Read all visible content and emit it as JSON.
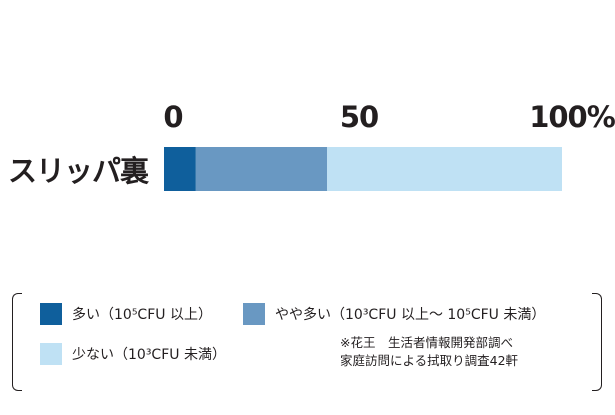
{
  "chart_data": {
    "type": "bar",
    "stacked": true,
    "orientation": "horizontal",
    "categories": [
      "スリッパ裏"
    ],
    "series": [
      {
        "name": "多い（10⁵CFU 以上）",
        "values": [
          8
        ],
        "color": "#0f5f9c"
      },
      {
        "name": "やや多い（10³CFU 以上～ 10⁵CFU 未満）",
        "values": [
          33
        ],
        "color": "#6998c2"
      },
      {
        "name": "少ない（10³CFU 未満）",
        "values": [
          59
        ],
        "color": "#bfe1f4"
      }
    ],
    "xlim": [
      0,
      100
    ],
    "ticks": [
      "0",
      "50",
      "100%"
    ],
    "legend_placement": "bottom",
    "grid": false
  },
  "legend": {
    "items": [
      {
        "label": "多い（10⁵CFU 以上）"
      },
      {
        "label": "やや多い（10³CFU 以上～ 10⁵CFU 未満）"
      },
      {
        "label": "少ない（10³CFU 未満）"
      }
    ]
  },
  "note": {
    "line1": "※花王　生活者情報開発部調べ",
    "line2": "家庭訪問による拭取り調査42軒"
  }
}
